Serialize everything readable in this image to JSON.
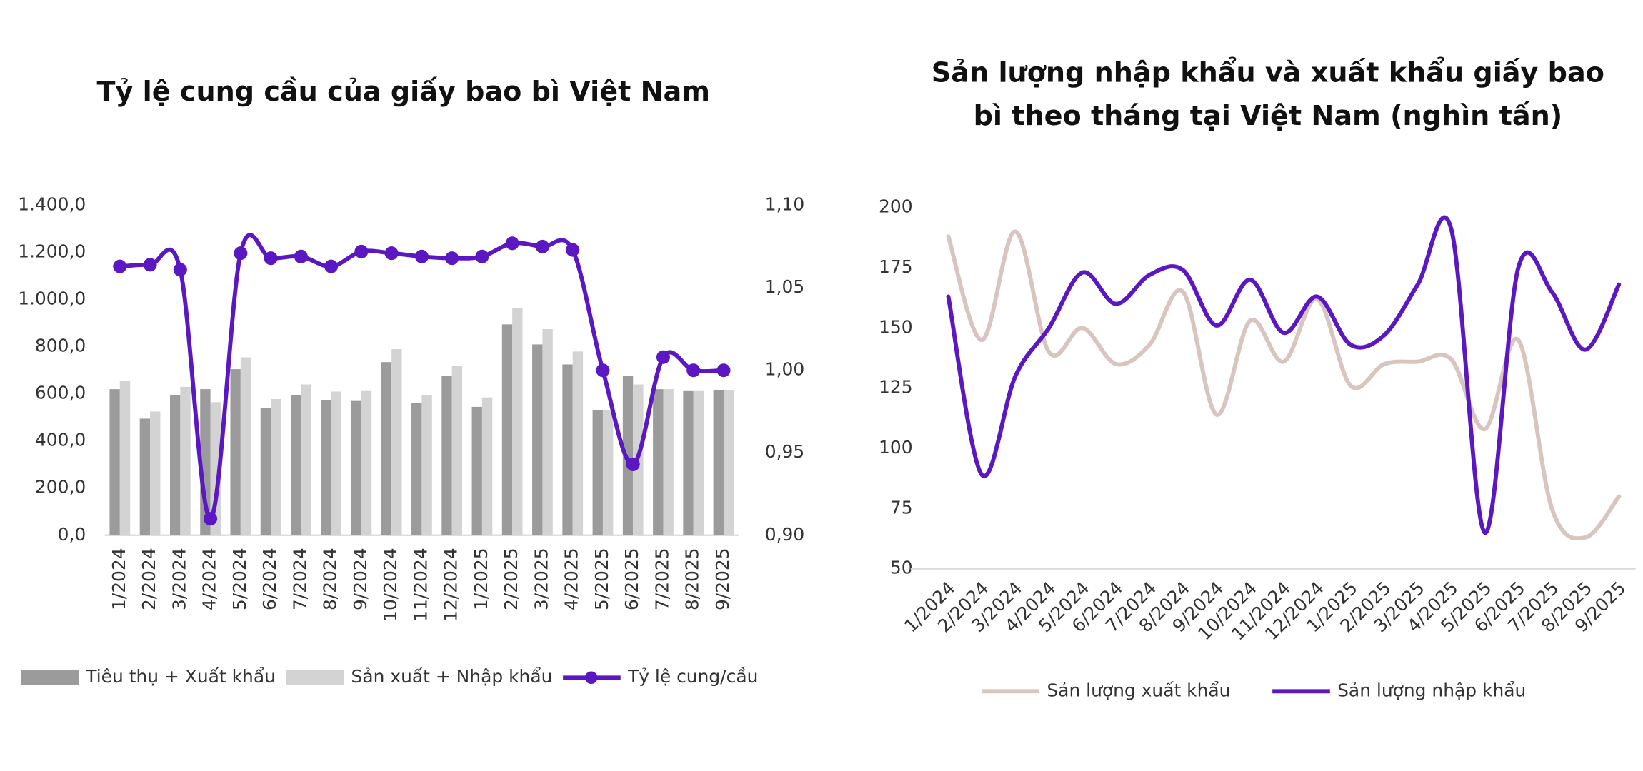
{
  "chart_data": [
    {
      "type": "bar",
      "title": "Tỷ lệ cung cầu của giấy bao bì Việt Nam",
      "categories": [
        "1/2024",
        "2/2024",
        "3/2024",
        "4/2024",
        "5/2024",
        "6/2024",
        "7/2024",
        "8/2024",
        "9/2024",
        "10/2024",
        "11/2024",
        "12/2024",
        "1/2025",
        "2/2025",
        "3/2025",
        "4/2025",
        "5/2025",
        "6/2025",
        "7/2025",
        "8/2025",
        "9/2025"
      ],
      "series": [
        {
          "name": "Tiêu thụ + Xuất khẩu",
          "color": "#9b9b9b",
          "values": [
            620,
            495,
            595,
            620,
            705,
            540,
            595,
            575,
            570,
            735,
            560,
            675,
            545,
            895,
            810,
            725,
            530,
            675,
            620,
            612,
            615
          ]
        },
        {
          "name": "Sản xuất + Nhập khẩu",
          "color": "#d3d3d3",
          "values": [
            655,
            525,
            630,
            565,
            755,
            578,
            640,
            610,
            612,
            790,
            595,
            720,
            585,
            965,
            875,
            780,
            530,
            640,
            620,
            612,
            615
          ]
        },
        {
          "name": "Tỷ lệ cung/cầu",
          "color": "#5b17c2",
          "type": "line",
          "axis": "y2",
          "values": [
            1.063,
            1.064,
            1.061,
            0.91,
            1.071,
            1.068,
            1.069,
            1.063,
            1.072,
            1.071,
            1.069,
            1.068,
            1.069,
            1.077,
            1.075,
            1.073,
            1.0,
            0.943,
            1.008,
            1.0,
            1.0
          ]
        }
      ],
      "ylim": [
        0,
        1400
      ],
      "yticks": [
        {
          "value": 0,
          "label": "0,0"
        },
        {
          "value": 200,
          "label": "200,0"
        },
        {
          "value": 400,
          "label": "400,0"
        },
        {
          "value": 600,
          "label": "600,0"
        },
        {
          "value": 800,
          "label": "800,0"
        },
        {
          "value": 1000,
          "label": "1.000,0"
        },
        {
          "value": 1200,
          "label": "1.200,0"
        },
        {
          "value": 1400,
          "label": "1.400,0"
        }
      ],
      "y2lim": [
        0.9,
        1.1
      ],
      "y2ticks": [
        {
          "value": 0.9,
          "label": "0,90"
        },
        {
          "value": 0.95,
          "label": "0,95"
        },
        {
          "value": 1.0,
          "label": "1,00"
        },
        {
          "value": 1.05,
          "label": "1,05"
        },
        {
          "value": 1.1,
          "label": "1,10"
        }
      ],
      "grid": false,
      "legend": "bottom"
    },
    {
      "type": "line",
      "title": "Sản lượng nhập khẩu và xuất khẩu giấy bao bì theo tháng tại Việt Nam (nghìn tấn)",
      "categories": [
        "1/2024",
        "2/2024",
        "3/2024",
        "4/2024",
        "5/2024",
        "6/2024",
        "7/2024",
        "8/2024",
        "9/2024",
        "10/2024",
        "11/2024",
        "12/2024",
        "1/2025",
        "2/2025",
        "3/2025",
        "4/2025",
        "5/2025",
        "6/2025",
        "7/2025",
        "8/2025",
        "9/2025"
      ],
      "series": [
        {
          "name": "Sản lượng xuất khẩu",
          "color": "#d9c5bf",
          "values": [
            188,
            145,
            190,
            140,
            150,
            135,
            143,
            165,
            114,
            153,
            136,
            162,
            126,
            135,
            136,
            137,
            108,
            145,
            75,
            63,
            80
          ]
        },
        {
          "name": "Sản lượng nhập khẩu",
          "color": "#5b17c2",
          "values": [
            163,
            89,
            130,
            150,
            173,
            160,
            172,
            174,
            151,
            170,
            148,
            163,
            143,
            147,
            168,
            191,
            65,
            175,
            165,
            141,
            168
          ]
        }
      ],
      "ylim": [
        50,
        200
      ],
      "yticks": [
        50,
        75,
        100,
        125,
        150,
        175,
        200
      ],
      "grid": false,
      "legend": "bottom"
    }
  ]
}
